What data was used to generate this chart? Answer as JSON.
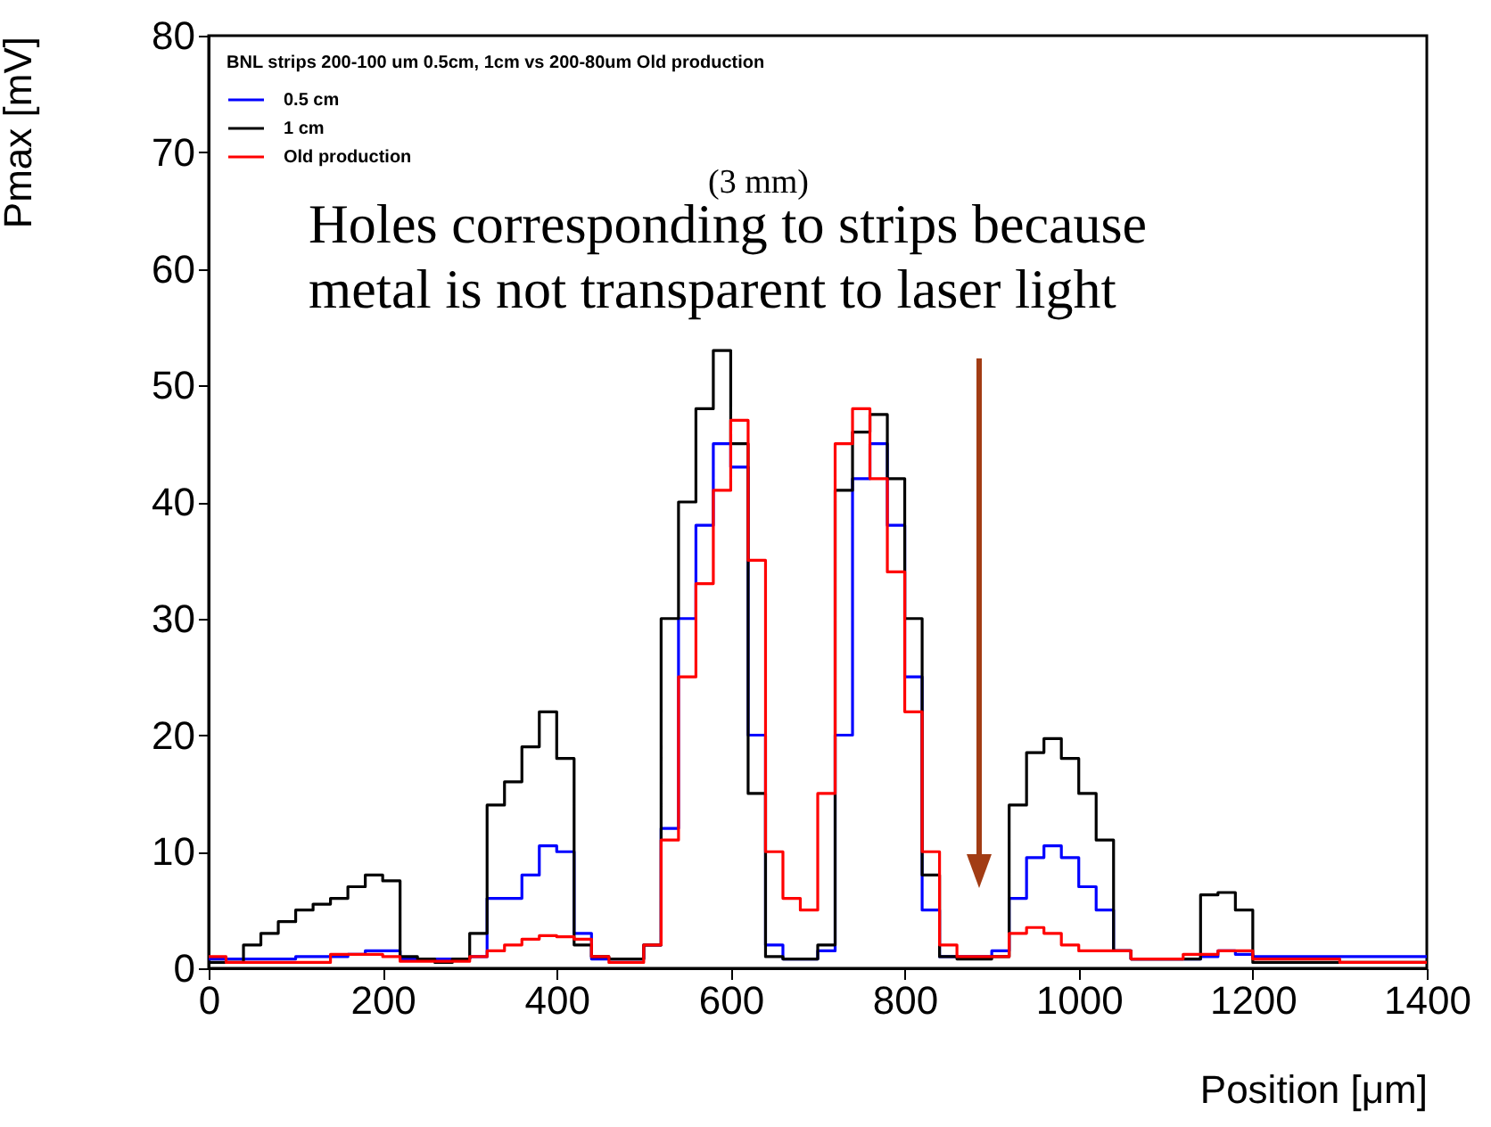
{
  "chart_data": {
    "type": "histogram",
    "xlabel": "Position [μm]",
    "ylabel": "Pmax [mV]",
    "legend_title": "BNL strips 200-100 um 0.5cm, 1cm vs 200-80um Old production",
    "legend": "top left",
    "bins": [
      0,
      20,
      40,
      60,
      80,
      100,
      120,
      140,
      160,
      180,
      200,
      220,
      240,
      260,
      280,
      300,
      320,
      340,
      360,
      380,
      400,
      420,
      440,
      460,
      480,
      500,
      520,
      540,
      560,
      580,
      600,
      620,
      640,
      660,
      680,
      700,
      720,
      740,
      760,
      780,
      800,
      820,
      840,
      860,
      880,
      900,
      920,
      940,
      960,
      980,
      1000,
      1020,
      1040,
      1060,
      1080,
      1100,
      1120,
      1140,
      1160,
      1180,
      1200,
      1220,
      1240,
      1260,
      1280,
      1300,
      1320,
      1340,
      1360,
      1380,
      1400
    ],
    "series": [
      {
        "name": "0.5 cm",
        "color": "#0000ff",
        "values": [
          0.8,
          0.8,
          0.8,
          0.8,
          0.8,
          1,
          1,
          1,
          1.2,
          1.5,
          1.5,
          0.8,
          0.8,
          0.8,
          0.8,
          1,
          6,
          6,
          8,
          10.5,
          10,
          3,
          0.8,
          0.8,
          0.8,
          2,
          12,
          30,
          38,
          45,
          43,
          20,
          2,
          0.8,
          0.8,
          1.5,
          20,
          42,
          45,
          38,
          25,
          5,
          1,
          1,
          1,
          1.5,
          6,
          9.5,
          10.5,
          9.5,
          7,
          5,
          1.5,
          0.8,
          0.8,
          0.8,
          0.8,
          1,
          1.5,
          1.2,
          1,
          1,
          1,
          1,
          1,
          1,
          1,
          1,
          1,
          1
        ]
      },
      {
        "name": "1 cm",
        "color": "#000000",
        "values": [
          0.5,
          0.5,
          2,
          3,
          4,
          5,
          5.5,
          6,
          7,
          8,
          7.5,
          1,
          0.8,
          0.5,
          0.8,
          3,
          14,
          16,
          19,
          22,
          18,
          2,
          1,
          0.8,
          0.8,
          2,
          30,
          40,
          48,
          53,
          45,
          15,
          1,
          0.8,
          0.8,
          2,
          41,
          46,
          47.5,
          42,
          30,
          8,
          1,
          0.8,
          0.8,
          1,
          14,
          18.5,
          19.7,
          18,
          15,
          11,
          1.5,
          0.8,
          0.8,
          0.8,
          0.8,
          6.3,
          6.5,
          5,
          0.5,
          0.5,
          0.5,
          0.5,
          0.5,
          0.5,
          0.5,
          0.5,
          0.5,
          0.5
        ]
      },
      {
        "name": "Old production",
        "color": "#ff0000",
        "values": [
          1,
          0.5,
          0.5,
          0.5,
          0.5,
          0.5,
          0.5,
          1.2,
          1.2,
          1.2,
          1,
          0.6,
          0.6,
          0.6,
          0.6,
          1,
          1.5,
          2,
          2.5,
          2.8,
          2.7,
          2.5,
          1,
          0.5,
          0.5,
          2,
          11,
          25,
          33,
          41,
          47,
          35,
          10,
          6,
          5,
          15,
          45,
          48,
          42,
          34,
          22,
          10,
          2,
          1,
          1,
          1,
          3,
          3.5,
          3,
          2,
          1.5,
          1.5,
          1.5,
          0.8,
          0.8,
          0.8,
          1.2,
          1.2,
          1.5,
          1.5,
          0.8,
          0.8,
          0.8,
          0.8,
          0.8,
          0.5,
          0.5,
          0.5,
          0.5,
          0.5
        ]
      }
    ],
    "xlim": [
      0,
      1400
    ],
    "xticks": [
      0,
      200,
      400,
      600,
      800,
      1000,
      1200,
      1400
    ],
    "ylim": [
      0,
      80
    ],
    "yticks": [
      0,
      10,
      20,
      30,
      40,
      50,
      60,
      70,
      80
    ],
    "annotations": [
      "(3 mm)",
      "Holes corresponding to strips because metal is not transparent to laser light"
    ]
  }
}
